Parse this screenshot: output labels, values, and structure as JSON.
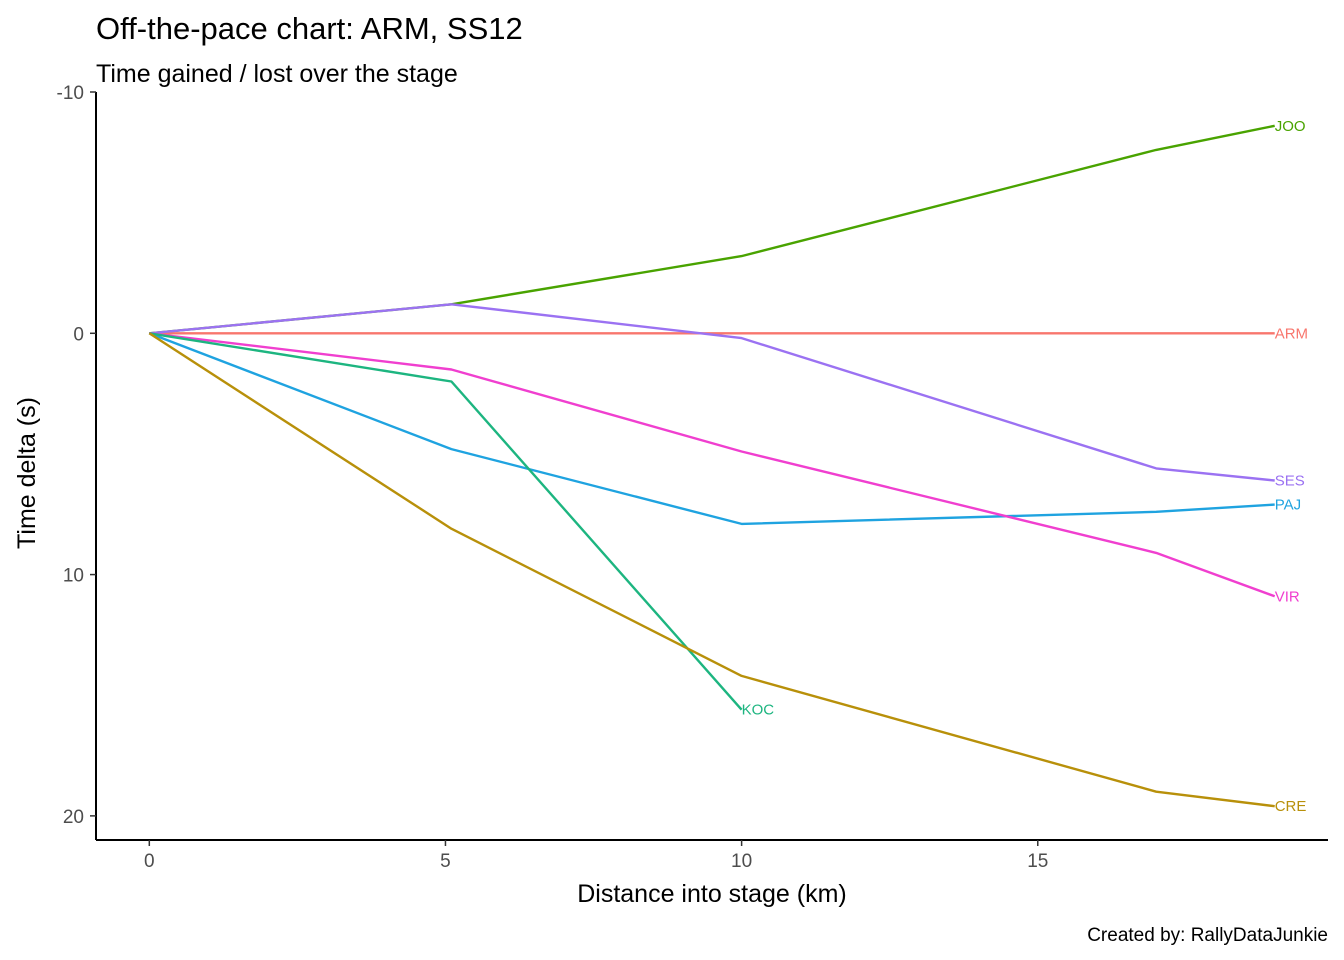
{
  "chart_data": {
    "type": "line",
    "title": "Off-the-pace chart: ARM, SS12",
    "subtitle": "Time gained / lost over the stage",
    "xlabel": "Distance into stage (km)",
    "ylabel": "Time delta (s)",
    "caption": "Created by: RallyDataJunkie",
    "xlim": [
      -0.9,
      19.9
    ],
    "ylim": [
      -10,
      21
    ],
    "y_reversed": true,
    "x_ticks": [
      0,
      5,
      10,
      15
    ],
    "y_ticks": [
      -10,
      0,
      10,
      20
    ],
    "grid": false,
    "legend": "none",
    "series": [
      {
        "name": "JOO",
        "color": "#49A300",
        "x": [
          0,
          5.1,
          10,
          17,
          19
        ],
        "y": [
          0,
          -1.2,
          -3.2,
          -7.6,
          -8.6
        ]
      },
      {
        "name": "ARM",
        "color": "#F8766D",
        "x": [
          0,
          5.1,
          10,
          17,
          19
        ],
        "y": [
          0,
          0,
          0,
          0,
          0
        ]
      },
      {
        "name": "SES",
        "color": "#9B72F2",
        "x": [
          0,
          5.1,
          10,
          17,
          19
        ],
        "y": [
          0,
          -1.2,
          0.2,
          5.6,
          6.1
        ]
      },
      {
        "name": "PAJ",
        "color": "#1FA3E0",
        "x": [
          0,
          5.1,
          10,
          17,
          19
        ],
        "y": [
          0,
          4.8,
          7.9,
          7.4,
          7.1
        ]
      },
      {
        "name": "VIR",
        "color": "#F03FCF",
        "x": [
          0,
          5.1,
          10,
          17,
          19
        ],
        "y": [
          0,
          1.5,
          4.9,
          9.1,
          10.9
        ]
      },
      {
        "name": "KOC",
        "color": "#1DB580",
        "x": [
          0,
          5.1,
          10
        ],
        "y": [
          0,
          2.0,
          15.6
        ]
      },
      {
        "name": "CRE",
        "color": "#B8900A",
        "x": [
          0,
          5.1,
          10,
          17,
          19
        ],
        "y": [
          0,
          8.1,
          14.2,
          19.0,
          19.6
        ]
      }
    ]
  }
}
